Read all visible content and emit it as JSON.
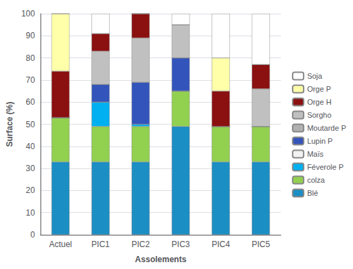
{
  "chart_data": {
    "type": "bar",
    "stacked": true,
    "categories": [
      "Actuel",
      "PIC1",
      "PIC2",
      "PIC3",
      "PIC4",
      "PIC5"
    ],
    "series": [
      {
        "name": "Blé",
        "color": "#1b8ec4",
        "values": [
          33,
          33,
          33,
          49,
          33,
          33
        ]
      },
      {
        "name": "colza",
        "color": "#92d050",
        "values": [
          20,
          16,
          16,
          16,
          16,
          16
        ]
      },
      {
        "name": "Féverole P",
        "color": "#00b0f0",
        "values": [
          0,
          11,
          1,
          0,
          0,
          0
        ]
      },
      {
        "name": "Maïs",
        "color": "#f2f2f2",
        "values": [
          0,
          0,
          0,
          0,
          0,
          0
        ]
      },
      {
        "name": "Lupin P",
        "color": "#3355bb",
        "values": [
          0,
          8,
          19,
          15,
          0,
          0
        ]
      },
      {
        "name": "Moutarde P",
        "color": "#b0b0b0",
        "values": [
          0,
          0,
          0,
          0,
          0,
          0
        ]
      },
      {
        "name": "Sorgho",
        "color": "#c0c0c0",
        "values": [
          0,
          15,
          20,
          15,
          0,
          17
        ]
      },
      {
        "name": "Orge H",
        "color": "#8b1010",
        "values": [
          21,
          8,
          11,
          0,
          16,
          11
        ]
      },
      {
        "name": "Orge P",
        "color": "#ffffaa",
        "values": [
          26,
          0,
          0,
          0,
          15,
          0
        ]
      },
      {
        "name": "Soja",
        "color": "#ffffff",
        "values": [
          0,
          9,
          0,
          5,
          20,
          23
        ]
      }
    ],
    "xlabel": "Assolements",
    "ylabel": "Surface (%)",
    "ylim": [
      0,
      100
    ],
    "yticks": [
      0,
      10,
      20,
      30,
      40,
      50,
      60,
      70,
      80,
      90,
      100
    ],
    "grid": true,
    "legend": "right"
  }
}
